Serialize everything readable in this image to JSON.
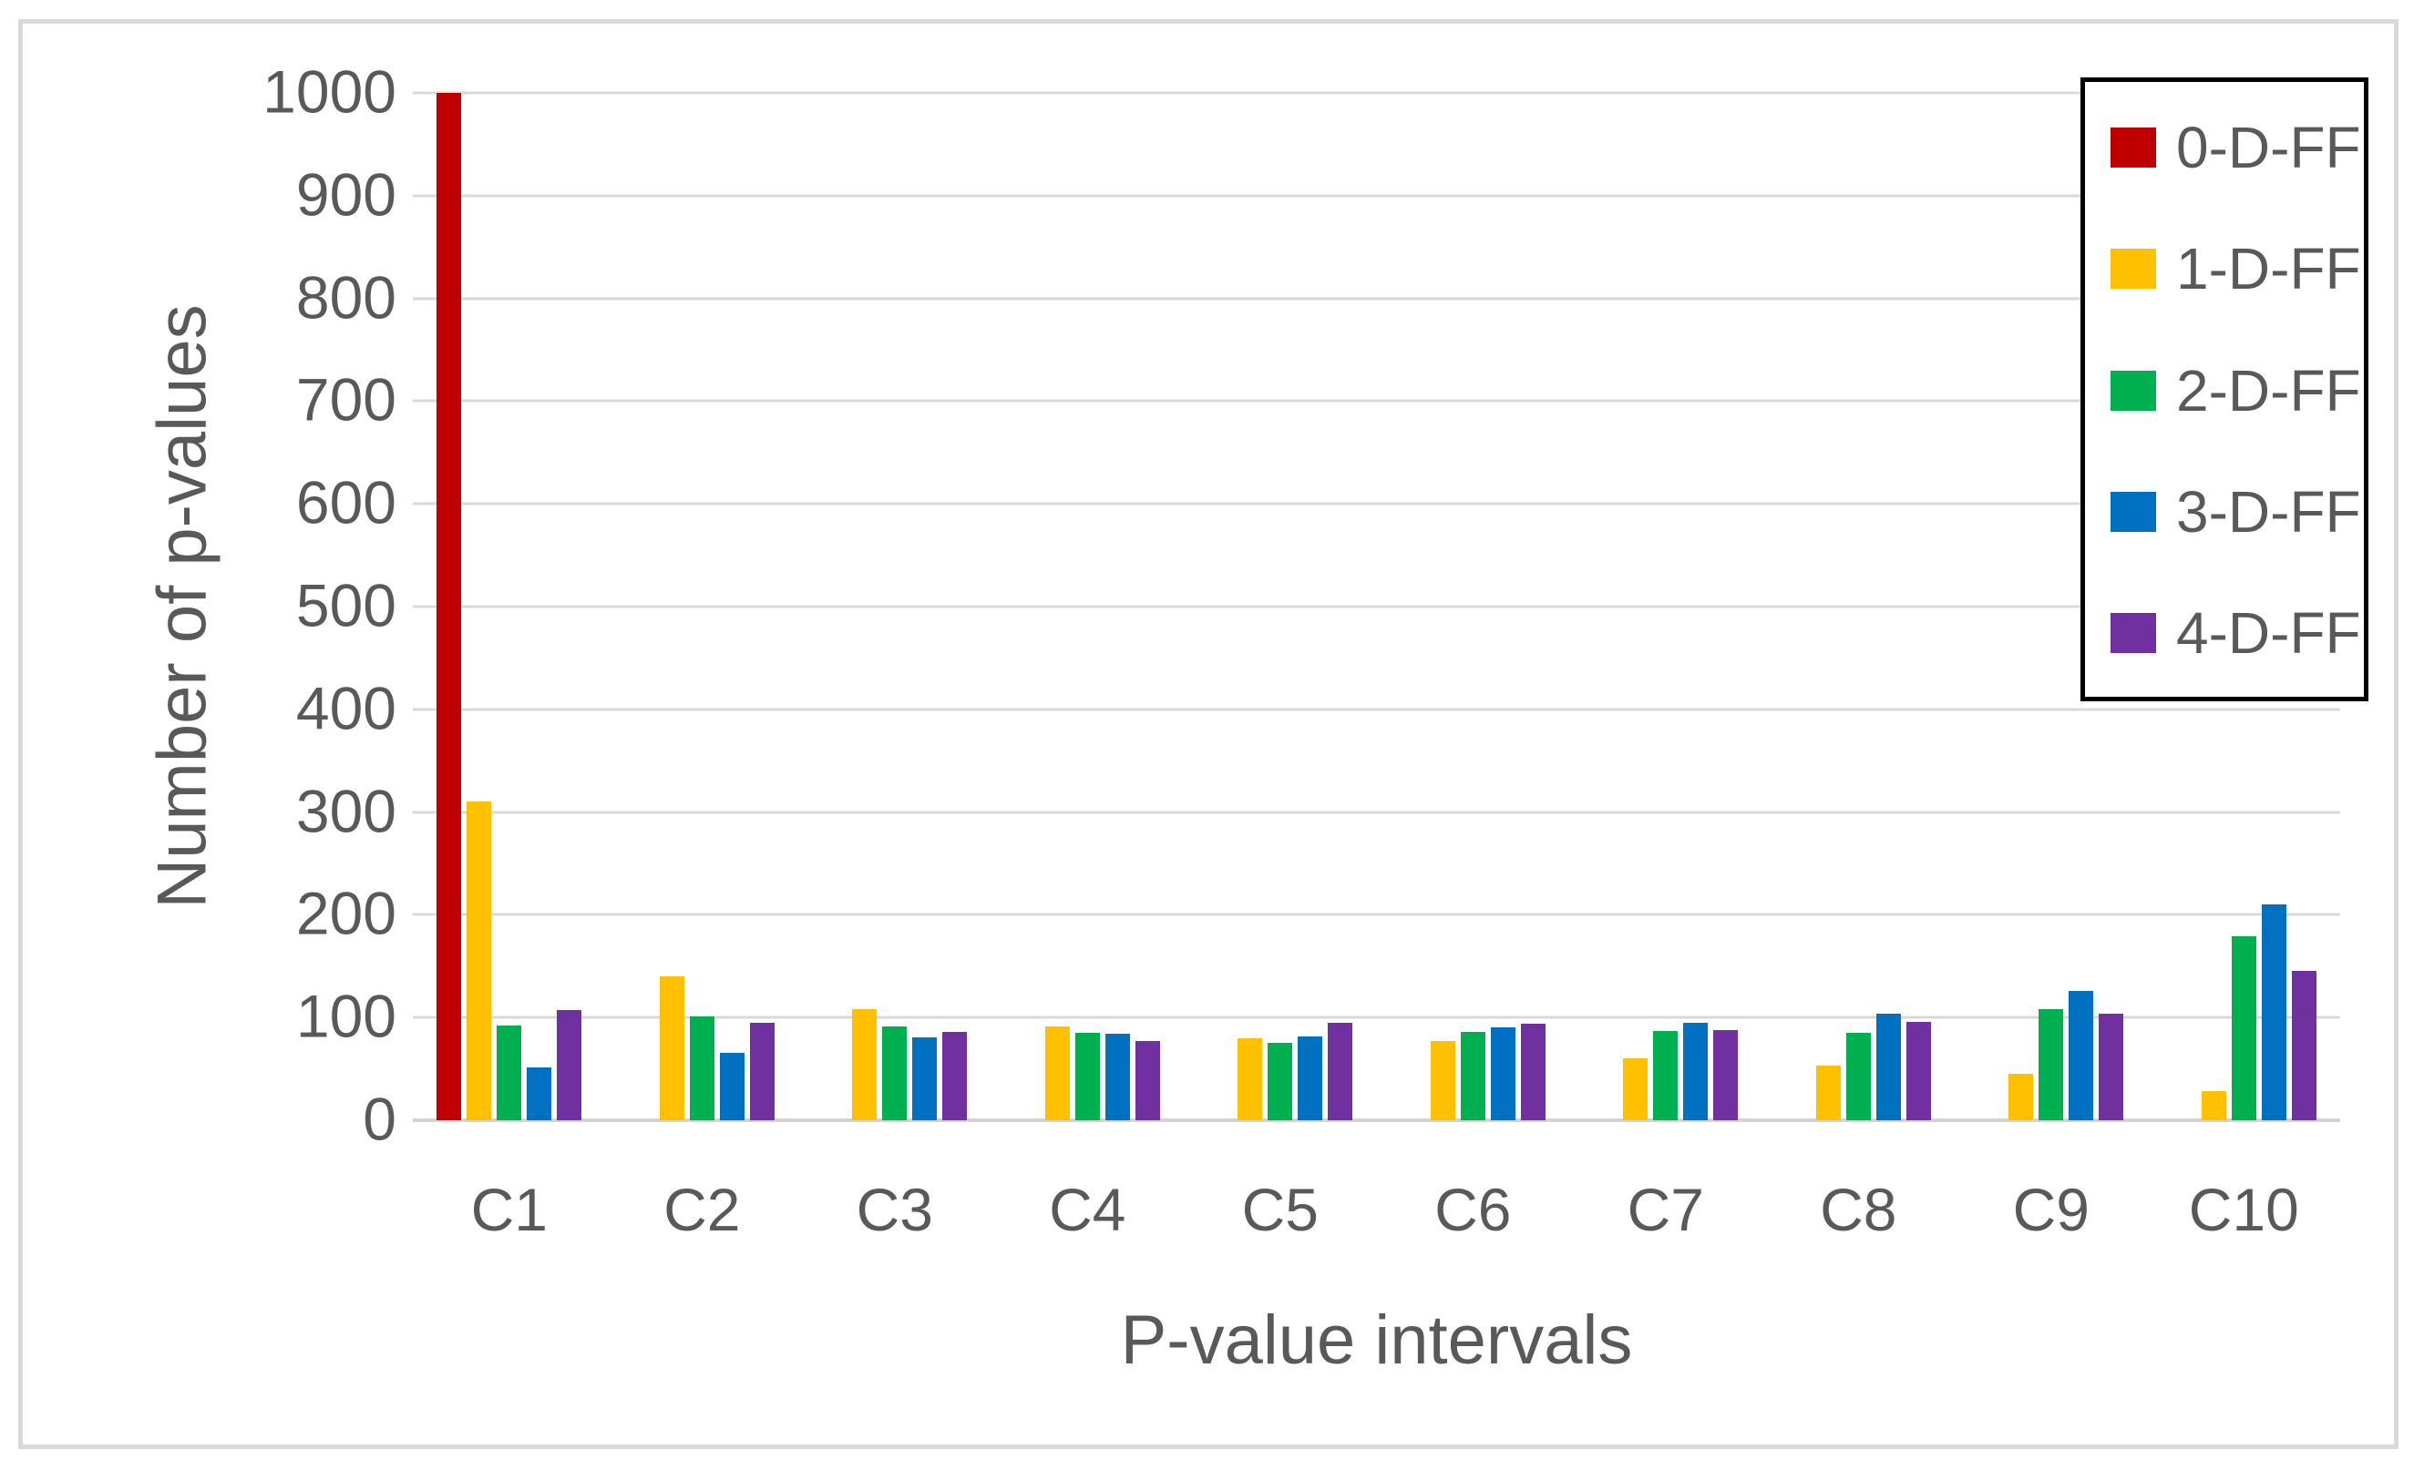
{
  "figure": {
    "background": "#ffffff",
    "border_color": "#d9d9d9",
    "text_color": "#595959",
    "gridline_color": "#d9d9d9",
    "legend_border_color": "#000000"
  },
  "chart_data": {
    "type": "bar",
    "title": "",
    "xlabel": "P-value intervals",
    "ylabel": "Number of p-values",
    "categories": [
      "C1",
      "C2",
      "C3",
      "C4",
      "C5",
      "C6",
      "C7",
      "C8",
      "C9",
      "C10"
    ],
    "series": [
      {
        "name": "0-D-FF",
        "color": "#C00000",
        "values": [
          1000,
          0,
          0,
          0,
          0,
          0,
          0,
          0,
          0,
          0
        ]
      },
      {
        "name": "1-D-FF",
        "color": "#FFC000",
        "values": [
          310,
          140,
          108,
          91,
          80,
          77,
          60,
          53,
          45,
          28
        ]
      },
      {
        "name": "2-D-FF",
        "color": "#00B050",
        "values": [
          92,
          101,
          91,
          85,
          75,
          86,
          87,
          85,
          108,
          179
        ]
      },
      {
        "name": "3-D-FF",
        "color": "#0070C0",
        "values": [
          51,
          66,
          81,
          84,
          82,
          90,
          95,
          104,
          126,
          210
        ]
      },
      {
        "name": "4-D-FF",
        "color": "#7030A0",
        "values": [
          107,
          95,
          86,
          77,
          95,
          94,
          88,
          96,
          104,
          145
        ]
      }
    ],
    "ylim": [
      0,
      1000
    ],
    "ytick_step": 100,
    "grid": "horizontal",
    "legend_position": "top-right"
  }
}
